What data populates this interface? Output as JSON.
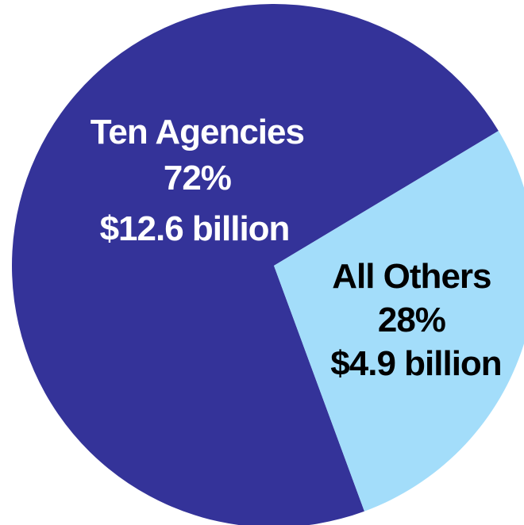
{
  "chart_data": {
    "type": "pie",
    "slices": [
      {
        "label": "Ten Agencies",
        "percent_label": "72%",
        "value_label": "$12.6 billion",
        "value": 12.6,
        "percent": 72,
        "color": "#343399",
        "text_color": "#ffffff"
      },
      {
        "label": "All Others",
        "percent_label": "28%",
        "value_label": "$4.9 billion",
        "value": 4.9,
        "percent": 28,
        "color": "#a3ddfa",
        "text_color": "#000000"
      }
    ]
  }
}
